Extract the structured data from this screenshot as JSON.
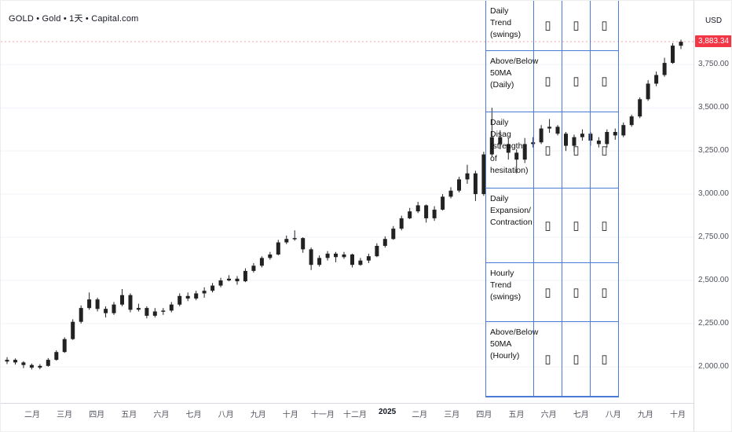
{
  "legend": {
    "text": "GOLD • Gold • 1天 • Capital.com"
  },
  "price_axis": {
    "currency": "USD",
    "last_price": "3,883.34",
    "last_price_value": 3883.34,
    "badge_color": "#f23645",
    "ticks": [
      {
        "label": "3,750.00",
        "value": 3750
      },
      {
        "label": "3,500.00",
        "value": 3500
      },
      {
        "label": "3,250.00",
        "value": 3250
      },
      {
        "label": "3,000.00",
        "value": 3000
      },
      {
        "label": "2,750.00",
        "value": 2750
      },
      {
        "label": "2,500.00",
        "value": 2500
      },
      {
        "label": "2,250.00",
        "value": 2250
      },
      {
        "label": "2,000.00",
        "value": 2000
      }
    ]
  },
  "time_axis": {
    "labels": [
      "二月",
      "三月",
      "四月",
      "五月",
      "六月",
      "七月",
      "八月",
      "九月",
      "十月",
      "十一月",
      "十二月",
      "2025",
      "二月",
      "三月",
      "四月",
      "五月",
      "六月",
      "七月",
      "八月",
      "九月",
      "十月"
    ],
    "bold_index": 11
  },
  "overlay_table": {
    "border_color": "#4a7bd5",
    "rows": [
      {
        "label": "Daily Trend (swings)",
        "cells": [
          "▯",
          "▯",
          "▯"
        ]
      },
      {
        "label": "Above/Below 50MA (Daily)",
        "cells": [
          "▯",
          "▯",
          "▯"
        ]
      },
      {
        "label": "Daily Disag (strength of hesitation)",
        "cells": [
          "▯",
          "▯",
          "▯"
        ]
      },
      {
        "label": "Daily Expansion/ Contraction",
        "cells": [
          "▯",
          "▯",
          "▯"
        ]
      },
      {
        "label": "Hourly Trend (swings)",
        "cells": [
          "▯",
          "▯",
          "▯"
        ]
      },
      {
        "label": "Above/Below 50MA (Hourly)",
        "cells": [
          "▯",
          "▯",
          "▯"
        ]
      }
    ]
  },
  "chart_data": {
    "type": "candlestick",
    "title": "GOLD Gold 1D Capital.com",
    "ylabel": "USD",
    "ylim": [
      1790,
      4120
    ],
    "grid": true,
    "colors": {
      "up": "#222222",
      "down": "#222222"
    },
    "candles": [
      [
        2030,
        2055,
        2015,
        2040
      ],
      [
        2040,
        2048,
        2012,
        2025
      ],
      [
        2025,
        2032,
        1992,
        2010
      ],
      [
        2010,
        2018,
        1984,
        1995
      ],
      [
        1995,
        2015,
        1985,
        2005
      ],
      [
        2005,
        2050,
        2000,
        2040
      ],
      [
        2040,
        2095,
        2035,
        2085
      ],
      [
        2085,
        2170,
        2080,
        2160
      ],
      [
        2160,
        2275,
        2155,
        2260
      ],
      [
        2260,
        2355,
        2250,
        2340
      ],
      [
        2340,
        2430,
        2330,
        2390
      ],
      [
        2390,
        2400,
        2320,
        2335
      ],
      [
        2335,
        2350,
        2285,
        2310
      ],
      [
        2310,
        2375,
        2300,
        2360
      ],
      [
        2360,
        2450,
        2350,
        2415
      ],
      [
        2415,
        2425,
        2315,
        2330
      ],
      [
        2330,
        2365,
        2320,
        2340
      ],
      [
        2340,
        2350,
        2280,
        2295
      ],
      [
        2295,
        2340,
        2285,
        2320
      ],
      [
        2320,
        2340,
        2300,
        2325
      ],
      [
        2325,
        2375,
        2315,
        2360
      ],
      [
        2360,
        2425,
        2350,
        2410
      ],
      [
        2410,
        2430,
        2380,
        2395
      ],
      [
        2395,
        2440,
        2385,
        2425
      ],
      [
        2425,
        2460,
        2400,
        2440
      ],
      [
        2440,
        2485,
        2430,
        2470
      ],
      [
        2470,
        2515,
        2460,
        2500
      ],
      [
        2500,
        2530,
        2495,
        2510
      ],
      [
        2510,
        2525,
        2475,
        2495
      ],
      [
        2495,
        2570,
        2490,
        2555
      ],
      [
        2555,
        2600,
        2545,
        2585
      ],
      [
        2585,
        2640,
        2575,
        2630
      ],
      [
        2630,
        2665,
        2620,
        2650
      ],
      [
        2650,
        2735,
        2645,
        2720
      ],
      [
        2720,
        2760,
        2710,
        2740
      ],
      [
        2740,
        2790,
        2730,
        2745
      ],
      [
        2745,
        2750,
        2660,
        2680
      ],
      [
        2680,
        2690,
        2560,
        2590
      ],
      [
        2590,
        2645,
        2580,
        2630
      ],
      [
        2630,
        2670,
        2615,
        2655
      ],
      [
        2655,
        2665,
        2605,
        2635
      ],
      [
        2635,
        2665,
        2625,
        2650
      ],
      [
        2650,
        2655,
        2575,
        2590
      ],
      [
        2590,
        2630,
        2585,
        2615
      ],
      [
        2615,
        2655,
        2600,
        2640
      ],
      [
        2640,
        2715,
        2635,
        2700
      ],
      [
        2700,
        2755,
        2690,
        2740
      ],
      [
        2740,
        2815,
        2735,
        2800
      ],
      [
        2800,
        2875,
        2790,
        2860
      ],
      [
        2860,
        2920,
        2855,
        2900
      ],
      [
        2900,
        2955,
        2890,
        2935
      ],
      [
        2935,
        2940,
        2835,
        2860
      ],
      [
        2860,
        2930,
        2845,
        2910
      ],
      [
        2910,
        3000,
        2905,
        2985
      ],
      [
        2985,
        3040,
        2975,
        3020
      ],
      [
        3020,
        3100,
        3010,
        3085
      ],
      [
        3085,
        3170,
        3060,
        3120
      ],
      [
        3120,
        3135,
        2960,
        3000
      ],
      [
        3000,
        3245,
        2990,
        3230
      ],
      [
        3230,
        3500,
        3215,
        3330
      ],
      [
        3330,
        3370,
        3260,
        3290
      ],
      [
        3290,
        3325,
        3200,
        3240
      ],
      [
        3240,
        3260,
        3120,
        3200
      ],
      [
        3200,
        3325,
        3180,
        3290
      ],
      [
        3290,
        3330,
        3270,
        3300
      ],
      [
        3300,
        3400,
        3290,
        3380
      ],
      [
        3380,
        3435,
        3355,
        3390
      ],
      [
        3390,
        3400,
        3340,
        3350
      ],
      [
        3350,
        3360,
        3250,
        3280
      ],
      [
        3280,
        3345,
        3245,
        3330
      ],
      [
        3330,
        3375,
        3310,
        3350
      ],
      [
        3350,
        3360,
        3280,
        3310
      ],
      [
        3310,
        3330,
        3270,
        3290
      ],
      [
        3290,
        3375,
        3270,
        3360
      ],
      [
        3360,
        3380,
        3315,
        3340
      ],
      [
        3340,
        3415,
        3330,
        3400
      ],
      [
        3400,
        3460,
        3390,
        3450
      ],
      [
        3450,
        3560,
        3440,
        3550
      ],
      [
        3550,
        3660,
        3540,
        3640
      ],
      [
        3640,
        3710,
        3625,
        3690
      ],
      [
        3690,
        3790,
        3680,
        3760
      ],
      [
        3760,
        3875,
        3755,
        3860
      ],
      [
        3860,
        3895,
        3840,
        3883
      ]
    ]
  }
}
